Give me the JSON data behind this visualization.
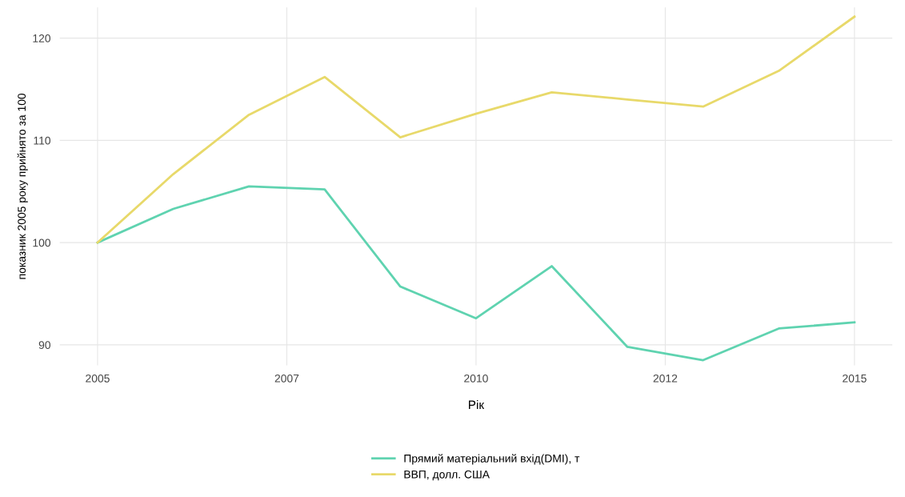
{
  "chart_data": {
    "type": "line",
    "xlabel": "Рік",
    "ylabel": "показник 2005 року прийнято за 100",
    "x": [
      2005,
      2006,
      2007,
      2008,
      2009,
      2010,
      2011,
      2012,
      2013,
      2014,
      2015
    ],
    "series": [
      {
        "name": "Прямий матеріальний вхід(DMI), т",
        "color": "#5fd3b0",
        "values": [
          100,
          103.3,
          105.5,
          105.2,
          95.7,
          92.6,
          97.7,
          89.8,
          88.5,
          91.6,
          92.2
        ]
      },
      {
        "name": "ВВП, долл. США",
        "color": "#e8d96a",
        "values": [
          100,
          106.7,
          112.5,
          116.2,
          110.3,
          112.6,
          114.7,
          114.0,
          113.3,
          116.8,
          122.1
        ]
      }
    ],
    "xlim": [
      2004.5,
      2015.5
    ],
    "xticks": [
      2005,
      {
        "value": 2007.5,
        "label": "2007"
      },
      2010,
      {
        "value": 2012.5,
        "label": "2012"
      },
      2015
    ],
    "ylim": [
      88,
      123
    ],
    "yticks": [
      90,
      100,
      110,
      120
    ],
    "grid": true,
    "legend": "bottom",
    "marker": "none",
    "line_style": "solid"
  }
}
